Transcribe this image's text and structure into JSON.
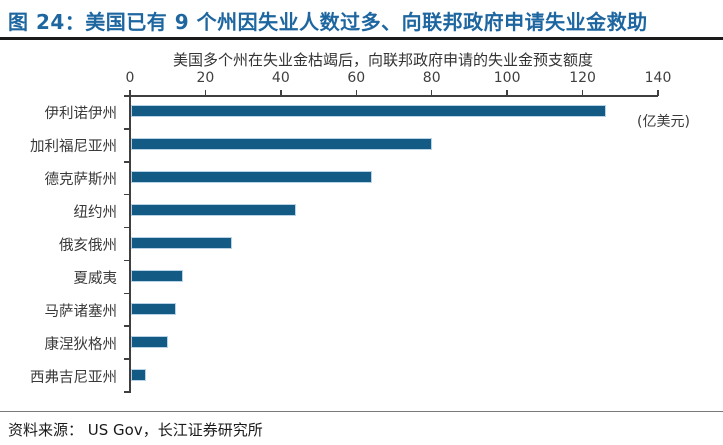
{
  "header": {
    "title": "图 24：美国已有 9 个州因失业人数过多、向联邦政府申请失业金救助"
  },
  "chart_data": {
    "type": "bar",
    "orientation": "horizontal",
    "title": "美国多个州在失业金枯竭后，向联邦政府申请的失业金预支额度",
    "unit_label": "(亿美元)",
    "categories": [
      "伊利诺伊州",
      "加利福尼亚州",
      "德克萨斯州",
      "纽约州",
      "俄亥俄州",
      "夏威夷",
      "马萨诸塞州",
      "康涅狄格州",
      "西弗吉尼亚州"
    ],
    "values": [
      126,
      80,
      64,
      44,
      27,
      14,
      12,
      10,
      4
    ],
    "x_ticks": [
      0,
      20,
      40,
      60,
      80,
      100,
      120,
      140
    ],
    "xlim": [
      0,
      140
    ],
    "xlabel": "",
    "ylabel": "",
    "grid": false,
    "legend": "none",
    "bar_color": "#135a85",
    "bar_border_color": "#b9d3e6",
    "axis_color": "#3f3f3f"
  },
  "footer": {
    "source": "资料来源： US Gov，长江证券研究所"
  },
  "colors": {
    "title_accent": "#1e66a0",
    "title_rule": "#1a1a1a",
    "footer_rule": "#7a7a7a",
    "background": "#ffffff"
  }
}
